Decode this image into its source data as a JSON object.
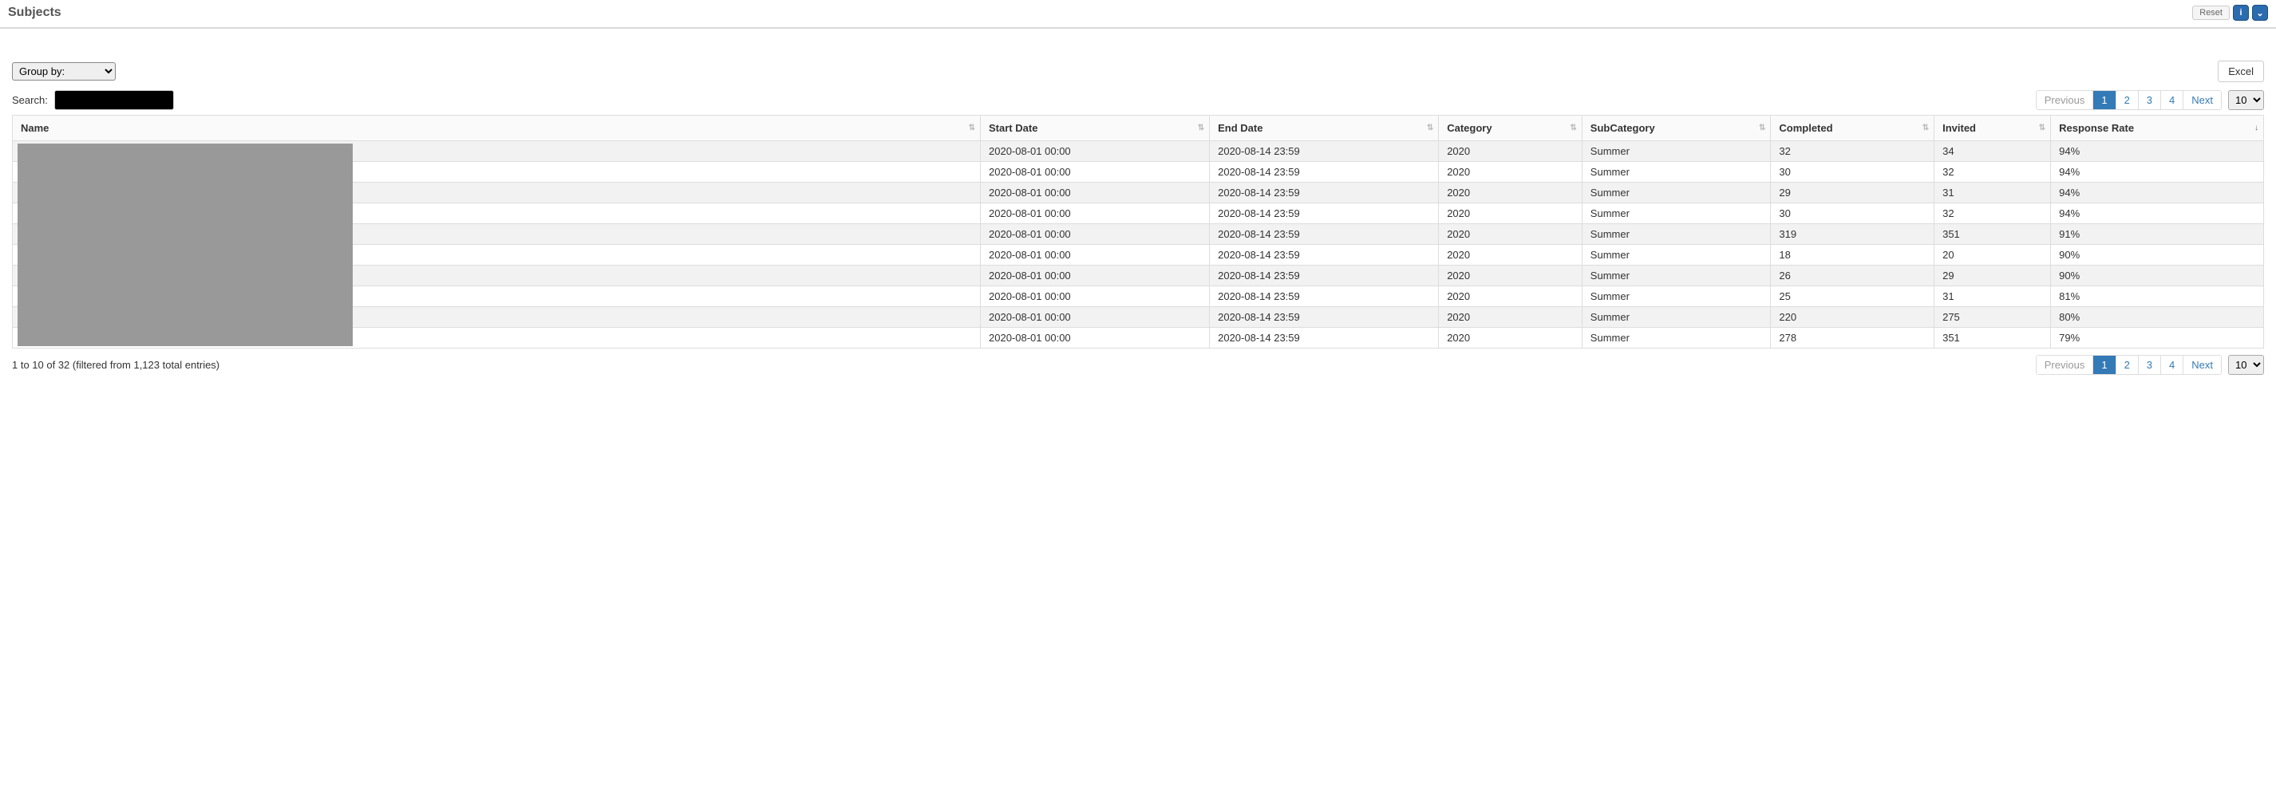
{
  "header": {
    "title": "Subjects",
    "reset_label": "Reset",
    "info_icon": "i",
    "chevron_icon": "⌄"
  },
  "controls": {
    "group_by_label": "Group by:",
    "group_by_options": [
      "Group by:"
    ],
    "excel_label": "Excel",
    "search_label": "Search:",
    "search_value": "",
    "page_size_selected": "10",
    "page_size_options": [
      "10"
    ]
  },
  "pager": {
    "previous_label": "Previous",
    "next_label": "Next",
    "pages": [
      "1",
      "2",
      "3",
      "4"
    ],
    "active_page": "1"
  },
  "table": {
    "columns": [
      {
        "key": "name",
        "label": "Name",
        "sort": "both",
        "class": "name-col"
      },
      {
        "key": "start",
        "label": "Start Date",
        "sort": "both"
      },
      {
        "key": "end",
        "label": "End Date",
        "sort": "both"
      },
      {
        "key": "category",
        "label": "Category",
        "sort": "both"
      },
      {
        "key": "subcategory",
        "label": "SubCategory",
        "sort": "both"
      },
      {
        "key": "completed",
        "label": "Completed",
        "sort": "both"
      },
      {
        "key": "invited",
        "label": "Invited",
        "sort": "both"
      },
      {
        "key": "response",
        "label": "Response Rate",
        "sort": "desc"
      }
    ],
    "rows": [
      {
        "name": "",
        "start": "2020-08-01 00:00",
        "end": "2020-08-14 23:59",
        "category": "2020",
        "subcategory": "Summer",
        "completed": "32",
        "invited": "34",
        "response": "94%"
      },
      {
        "name": "",
        "start": "2020-08-01 00:00",
        "end": "2020-08-14 23:59",
        "category": "2020",
        "subcategory": "Summer",
        "completed": "30",
        "invited": "32",
        "response": "94%"
      },
      {
        "name": "",
        "start": "2020-08-01 00:00",
        "end": "2020-08-14 23:59",
        "category": "2020",
        "subcategory": "Summer",
        "completed": "29",
        "invited": "31",
        "response": "94%"
      },
      {
        "name": "",
        "start": "2020-08-01 00:00",
        "end": "2020-08-14 23:59",
        "category": "2020",
        "subcategory": "Summer",
        "completed": "30",
        "invited": "32",
        "response": "94%"
      },
      {
        "name": "",
        "start": "2020-08-01 00:00",
        "end": "2020-08-14 23:59",
        "category": "2020",
        "subcategory": "Summer",
        "completed": "319",
        "invited": "351",
        "response": "91%"
      },
      {
        "name": "",
        "start": "2020-08-01 00:00",
        "end": "2020-08-14 23:59",
        "category": "2020",
        "subcategory": "Summer",
        "completed": "18",
        "invited": "20",
        "response": "90%"
      },
      {
        "name": "",
        "start": "2020-08-01 00:00",
        "end": "2020-08-14 23:59",
        "category": "2020",
        "subcategory": "Summer",
        "completed": "26",
        "invited": "29",
        "response": "90%"
      },
      {
        "name": "",
        "start": "2020-08-01 00:00",
        "end": "2020-08-14 23:59",
        "category": "2020",
        "subcategory": "Summer",
        "completed": "25",
        "invited": "31",
        "response": "81%"
      },
      {
        "name": "",
        "start": "2020-08-01 00:00",
        "end": "2020-08-14 23:59",
        "category": "2020",
        "subcategory": "Summer",
        "completed": "220",
        "invited": "275",
        "response": "80%"
      },
      {
        "name": "",
        "start": "2020-08-01 00:00",
        "end": "2020-08-14 23:59",
        "category": "2020",
        "subcategory": "Summer",
        "completed": "278",
        "invited": "351",
        "response": "79%"
      }
    ]
  },
  "footer": {
    "info": "1 to 10 of 32 (filtered from 1,123 total entries)"
  },
  "colors": {
    "accent": "#337ab7",
    "header_btn": "#2b6bb0",
    "border": "#dddddd",
    "row_alt": "#f2f2f2",
    "text": "#333333"
  }
}
